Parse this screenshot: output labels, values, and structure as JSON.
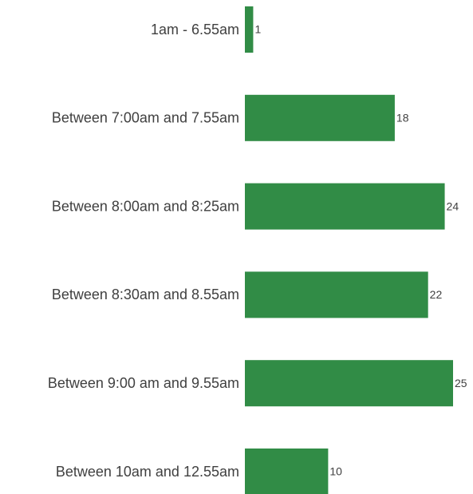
{
  "chart_data": {
    "type": "hbar",
    "categories": [
      "1am - 6.55am",
      "Between 7:00am and 7.55am",
      "Between 8:00am and 8:25am",
      "Between 8:30am and 8.55am",
      "Between 9:00 am and 9.55am",
      "Between 10am and 12.55am"
    ],
    "values": [
      1,
      18,
      24,
      22,
      25,
      10
    ],
    "color": "#318c46"
  }
}
